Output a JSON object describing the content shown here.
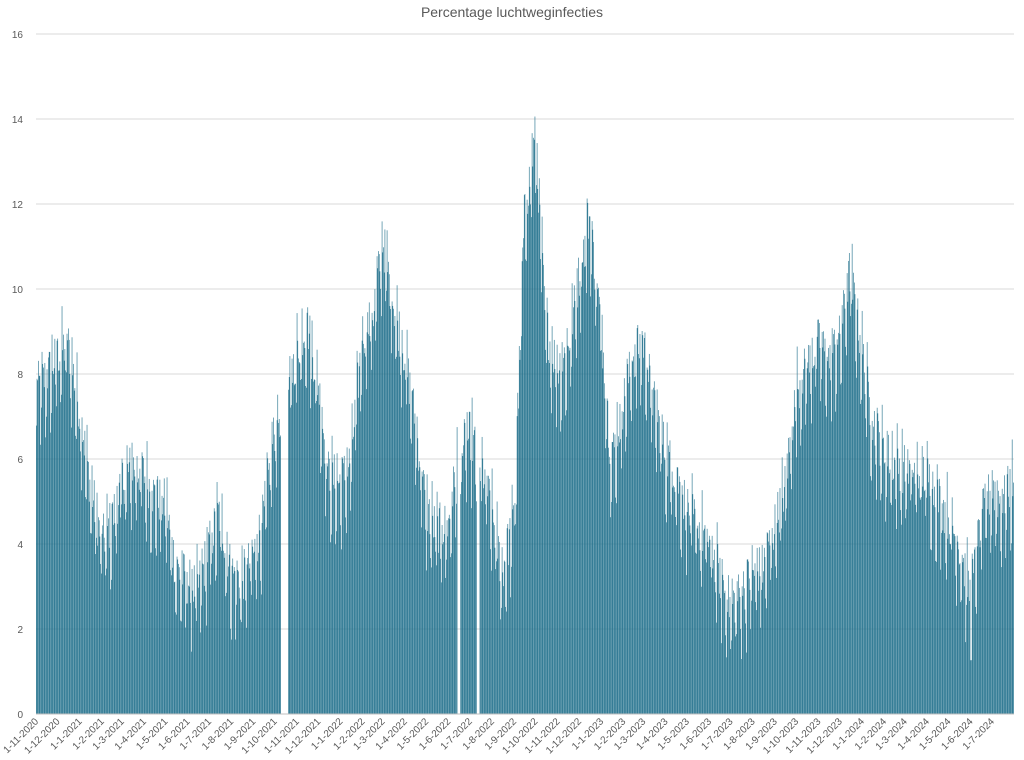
{
  "chart_data": {
    "type": "bar",
    "title": "Percentage luchtweginfecties",
    "xlabel": "",
    "ylabel": "",
    "ylim": [
      0,
      16
    ],
    "yticks": [
      0,
      2,
      4,
      6,
      8,
      10,
      12,
      14,
      16
    ],
    "grid": true,
    "legend": "none",
    "bar_color": "#1f6f8b",
    "x_start": "2020-11-01",
    "x_end": "2024-07-31",
    "x_tick_labels": [
      "1-11-2020",
      "1-12-2020",
      "1-1-2021",
      "1-2-2021",
      "1-3-2021",
      "1-4-2021",
      "1-5-2021",
      "1-6-2021",
      "1-7-2021",
      "1-8-2021",
      "1-9-2021",
      "1-10-2021",
      "1-11-2021",
      "1-12-2021",
      "1-1-2022",
      "1-2-2022",
      "1-3-2022",
      "1-4-2022",
      "1-5-2022",
      "1-6-2022",
      "1-7-2022",
      "1-8-2022",
      "1-9-2022",
      "1-10-2022",
      "1-11-2022",
      "1-12-2022",
      "1-1-2023",
      "1-2-2023",
      "1-3-2023",
      "1-4-2023",
      "1-5-2023",
      "1-6-2023",
      "1-7-2023",
      "1-8-2023",
      "1-9-2023",
      "1-10-2023",
      "1-11-2023",
      "1-12-2023",
      "1-1-2024",
      "1-2-2024",
      "1-3-2024",
      "1-4-2024",
      "1-5-2024",
      "1-6-2024",
      "1-7-2024"
    ],
    "series": [
      {
        "x": [
          "2020-11-01",
          "2020-11-15",
          "2020-12-01",
          "2020-12-15",
          "2021-01-01",
          "2021-01-15",
          "2021-02-01",
          "2021-02-15",
          "2021-03-01",
          "2021-03-15",
          "2021-04-01",
          "2021-04-15",
          "2021-05-01",
          "2021-05-15",
          "2021-06-01",
          "2021-06-15",
          "2021-07-01",
          "2021-07-15",
          "2021-08-01",
          "2021-08-15",
          "2021-09-01",
          "2021-09-15",
          "2021-10-01",
          "2021-10-15",
          "2021-11-01",
          "2021-11-15",
          "2021-12-01",
          "2021-12-15",
          "2022-01-01",
          "2022-01-15",
          "2022-02-01",
          "2022-02-15",
          "2022-03-01",
          "2022-03-15",
          "2022-04-01",
          "2022-04-15",
          "2022-05-01",
          "2022-05-15",
          "2022-06-01",
          "2022-06-15",
          "2022-07-01",
          "2022-07-15",
          "2022-08-01",
          "2022-08-15",
          "2022-09-01",
          "2022-09-15",
          "2022-10-01",
          "2022-10-15",
          "2022-11-01",
          "2022-11-15",
          "2022-12-01",
          "2022-12-15",
          "2023-01-01",
          "2023-01-15",
          "2023-02-01",
          "2023-02-15",
          "2023-03-01",
          "2023-03-15",
          "2023-04-01",
          "2023-04-15",
          "2023-05-01",
          "2023-05-15",
          "2023-06-01",
          "2023-06-15",
          "2023-07-01",
          "2023-07-15",
          "2023-08-01",
          "2023-08-15",
          "2023-09-01",
          "2023-09-15",
          "2023-10-01",
          "2023-10-15",
          "2023-11-01",
          "2023-11-15",
          "2023-12-01",
          "2023-12-15",
          "2024-01-01",
          "2024-01-15",
          "2024-02-01",
          "2024-02-15",
          "2024-03-01",
          "2024-03-15",
          "2024-04-01",
          "2024-04-15",
          "2024-05-01",
          "2024-05-15",
          "2024-06-01",
          "2024-06-15",
          "2024-07-01",
          "2024-07-15",
          "2024-07-31"
        ],
        "values": [
          7.5,
          7.8,
          8.3,
          8.6,
          7.0,
          5.3,
          3.9,
          4.4,
          5.3,
          5.7,
          5.5,
          5.0,
          4.8,
          3.3,
          3.0,
          2.8,
          3.8,
          4.6,
          3.2,
          3.0,
          3.6,
          4.5,
          6.6,
          7.2,
          8.4,
          9.1,
          7.6,
          5.5,
          5.3,
          5.8,
          8.8,
          9.2,
          11.0,
          9.6,
          8.3,
          6.8,
          4.7,
          4.2,
          4.3,
          6.0,
          6.4,
          5.9,
          4.6,
          3.2,
          4.5,
          11.5,
          13.5,
          9.0,
          8.0,
          8.4,
          10.2,
          11.6,
          9.0,
          5.8,
          7.2,
          8.3,
          8.6,
          7.2,
          6.0,
          5.5,
          4.7,
          4.3,
          3.9,
          3.2,
          2.4,
          2.7,
          3.2,
          3.3,
          4.3,
          5.2,
          7.5,
          8.0,
          8.6,
          8.2,
          8.7,
          10.3,
          8.4,
          6.8,
          6.0,
          5.8,
          5.6,
          5.5,
          5.5,
          5.0,
          4.5,
          3.9,
          2.6,
          4.4,
          5.2,
          4.8,
          5.4
        ]
      }
    ],
    "gaps": [
      [
        "2021-10-10",
        "2021-10-19"
      ],
      [
        "2022-06-14",
        "2022-06-17"
      ],
      [
        "2022-07-11",
        "2022-07-14"
      ]
    ]
  }
}
